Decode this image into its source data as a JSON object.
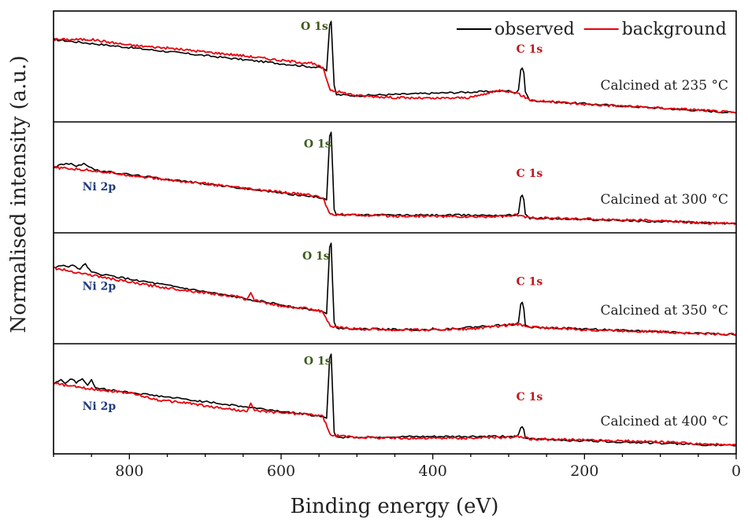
{
  "chart_data": {
    "type": "line",
    "xlabel": "Binding energy (eV)",
    "ylabel": "Normalised intensity (a.u.)",
    "xlim": [
      900,
      0
    ],
    "x_ticks": [
      800,
      600,
      400,
      200,
      0
    ],
    "x_reversed": true,
    "grid": false,
    "legend": {
      "position": "top-right",
      "entries": [
        {
          "label": "observed",
          "color": "#000000"
        },
        {
          "label": "background",
          "color": "#e8000b"
        }
      ]
    },
    "colors": {
      "observed": "#000000",
      "background": "#e8000b",
      "o1s_label": "#3b5a1a",
      "c1s_label": "#c0141a",
      "ni2p_label": "#1f3b7a"
    },
    "panels": [
      {
        "label": "Calcined at 235 °C",
        "background": [
          [
            900,
            0.8
          ],
          [
            850,
            0.8
          ],
          [
            800,
            0.74
          ],
          [
            750,
            0.71
          ],
          [
            700,
            0.67
          ],
          [
            650,
            0.63
          ],
          [
            600,
            0.58
          ],
          [
            560,
            0.55
          ],
          [
            545,
            0.5
          ],
          [
            535,
            0.27
          ],
          [
            500,
            0.21
          ],
          [
            450,
            0.19
          ],
          [
            400,
            0.18
          ],
          [
            350,
            0.19
          ],
          [
            310,
            0.27
          ],
          [
            290,
            0.24
          ],
          [
            270,
            0.16
          ],
          [
            200,
            0.12
          ],
          [
            150,
            0.1
          ],
          [
            100,
            0.08
          ],
          [
            50,
            0.06
          ],
          [
            0,
            0.03
          ]
        ],
        "observed": [
          [
            900,
            0.8
          ],
          [
            545,
            0.5
          ],
          [
            540,
            0.47
          ],
          [
            536,
            0.95
          ],
          [
            534,
            0.99
          ],
          [
            532,
            0.65
          ],
          [
            530,
            0.32
          ],
          [
            527,
            0.22
          ],
          [
            500,
            0.21
          ],
          [
            300,
            0.26
          ],
          [
            290,
            0.24
          ],
          [
            287,
            0.27
          ],
          [
            284,
            0.48
          ],
          [
            282,
            0.5
          ],
          [
            280,
            0.45
          ],
          [
            278,
            0.25
          ],
          [
            272,
            0.16
          ],
          [
            0,
            0.03
          ]
        ],
        "annotations": [
          {
            "label": "O 1s",
            "x": 574,
            "y": 0.9,
            "kind": "o1s"
          },
          {
            "label": "C 1s",
            "x": 290,
            "y": 0.66,
            "kind": "c1s"
          }
        ]
      },
      {
        "label": "Calcined at 300 °C",
        "background": [
          [
            900,
            0.62
          ],
          [
            850,
            0.59
          ],
          [
            800,
            0.54
          ],
          [
            750,
            0.49
          ],
          [
            700,
            0.45
          ],
          [
            650,
            0.4
          ],
          [
            600,
            0.36
          ],
          [
            560,
            0.33
          ],
          [
            545,
            0.3
          ],
          [
            535,
            0.13
          ],
          [
            500,
            0.12
          ],
          [
            450,
            0.11
          ],
          [
            400,
            0.11
          ],
          [
            350,
            0.1
          ],
          [
            300,
            0.11
          ],
          [
            290,
            0.12
          ],
          [
            270,
            0.09
          ],
          [
            200,
            0.08
          ],
          [
            150,
            0.07
          ],
          [
            100,
            0.06
          ],
          [
            50,
            0.04
          ],
          [
            0,
            0.03
          ]
        ],
        "observed": [
          [
            900,
            0.62
          ],
          [
            890,
            0.65
          ],
          [
            880,
            0.66
          ],
          [
            870,
            0.64
          ],
          [
            860,
            0.66
          ],
          [
            850,
            0.62
          ],
          [
            845,
            0.59
          ],
          [
            545,
            0.3
          ],
          [
            540,
            0.28
          ],
          [
            536,
            0.95
          ],
          [
            534,
            0.99
          ],
          [
            532,
            0.6
          ],
          [
            530,
            0.18
          ],
          [
            527,
            0.13
          ],
          [
            500,
            0.12
          ],
          [
            290,
            0.12
          ],
          [
            287,
            0.14
          ],
          [
            284,
            0.31
          ],
          [
            282,
            0.33
          ],
          [
            280,
            0.28
          ],
          [
            278,
            0.13
          ],
          [
            272,
            0.09
          ],
          [
            0,
            0.03
          ]
        ],
        "annotations": [
          {
            "label": "O 1s",
            "x": 570,
            "y": 0.83,
            "kind": "o1s"
          },
          {
            "label": "C 1s",
            "x": 290,
            "y": 0.52,
            "kind": "c1s"
          },
          {
            "label": "Ni 2p",
            "x": 862,
            "y": 0.38,
            "kind": "ni2p"
          }
        ]
      },
      {
        "label": "Calcined at 350 °C",
        "background": [
          [
            900,
            0.73
          ],
          [
            860,
            0.67
          ],
          [
            800,
            0.58
          ],
          [
            750,
            0.52
          ],
          [
            700,
            0.47
          ],
          [
            660,
            0.43
          ],
          [
            645,
            0.4
          ],
          [
            640,
            0.47
          ],
          [
            635,
            0.39
          ],
          [
            600,
            0.33
          ],
          [
            560,
            0.3
          ],
          [
            545,
            0.27
          ],
          [
            535,
            0.11
          ],
          [
            500,
            0.09
          ],
          [
            450,
            0.08
          ],
          [
            400,
            0.08
          ],
          [
            350,
            0.09
          ],
          [
            300,
            0.13
          ],
          [
            290,
            0.14
          ],
          [
            270,
            0.11
          ],
          [
            200,
            0.08
          ],
          [
            150,
            0.07
          ],
          [
            100,
            0.06
          ],
          [
            50,
            0.04
          ],
          [
            0,
            0.03
          ]
        ],
        "observed": [
          [
            900,
            0.73
          ],
          [
            890,
            0.76
          ],
          [
            880,
            0.74
          ],
          [
            875,
            0.77
          ],
          [
            865,
            0.71
          ],
          [
            858,
            0.78
          ],
          [
            850,
            0.68
          ],
          [
            545,
            0.27
          ],
          [
            540,
            0.25
          ],
          [
            536,
            0.95
          ],
          [
            534,
            0.99
          ],
          [
            532,
            0.55
          ],
          [
            530,
            0.16
          ],
          [
            527,
            0.1
          ],
          [
            500,
            0.09
          ],
          [
            402,
            0.08
          ],
          [
            400,
            0.1
          ],
          [
            398,
            0.08
          ],
          [
            290,
            0.14
          ],
          [
            287,
            0.16
          ],
          [
            284,
            0.35
          ],
          [
            282,
            0.37
          ],
          [
            280,
            0.3
          ],
          [
            278,
            0.13
          ],
          [
            272,
            0.11
          ],
          [
            0,
            0.03
          ]
        ],
        "annotations": [
          {
            "label": "O 1s",
            "x": 572,
            "y": 0.82,
            "kind": "o1s"
          },
          {
            "label": "C 1s",
            "x": 290,
            "y": 0.55,
            "kind": "c1s"
          },
          {
            "label": "Ni 2p",
            "x": 862,
            "y": 0.5,
            "kind": "ni2p"
          }
        ]
      },
      {
        "label": "Calcined at 400 °C",
        "background": [
          [
            900,
            0.68
          ],
          [
            860,
            0.63
          ],
          [
            800,
            0.58
          ],
          [
            760,
            0.5
          ],
          [
            720,
            0.47
          ],
          [
            700,
            0.44
          ],
          [
            660,
            0.4
          ],
          [
            645,
            0.38
          ],
          [
            640,
            0.47
          ],
          [
            635,
            0.39
          ],
          [
            600,
            0.37
          ],
          [
            560,
            0.35
          ],
          [
            545,
            0.33
          ],
          [
            535,
            0.13
          ],
          [
            500,
            0.11
          ],
          [
            450,
            0.1
          ],
          [
            400,
            0.1
          ],
          [
            350,
            0.1
          ],
          [
            300,
            0.11
          ],
          [
            290,
            0.12
          ],
          [
            270,
            0.09
          ],
          [
            200,
            0.08
          ],
          [
            150,
            0.07
          ],
          [
            100,
            0.06
          ],
          [
            50,
            0.04
          ],
          [
            0,
            0.02
          ]
        ],
        "observed": [
          [
            900,
            0.68
          ],
          [
            890,
            0.72
          ],
          [
            885,
            0.68
          ],
          [
            878,
            0.73
          ],
          [
            870,
            0.69
          ],
          [
            862,
            0.73
          ],
          [
            855,
            0.66
          ],
          [
            850,
            0.72
          ],
          [
            845,
            0.63
          ],
          [
            545,
            0.33
          ],
          [
            540,
            0.31
          ],
          [
            536,
            0.95
          ],
          [
            534,
            0.99
          ],
          [
            532,
            0.58
          ],
          [
            530,
            0.16
          ],
          [
            527,
            0.11
          ],
          [
            500,
            0.11
          ],
          [
            290,
            0.12
          ],
          [
            287,
            0.14
          ],
          [
            284,
            0.21
          ],
          [
            282,
            0.22
          ],
          [
            280,
            0.19
          ],
          [
            278,
            0.1
          ],
          [
            272,
            0.09
          ],
          [
            0,
            0.02
          ]
        ],
        "annotations": [
          {
            "label": "O 1s",
            "x": 570,
            "y": 0.88,
            "kind": "o1s"
          },
          {
            "label": "C 1s",
            "x": 290,
            "y": 0.5,
            "kind": "c1s"
          },
          {
            "label": "Ni 2p",
            "x": 862,
            "y": 0.4,
            "kind": "ni2p"
          }
        ]
      }
    ]
  }
}
